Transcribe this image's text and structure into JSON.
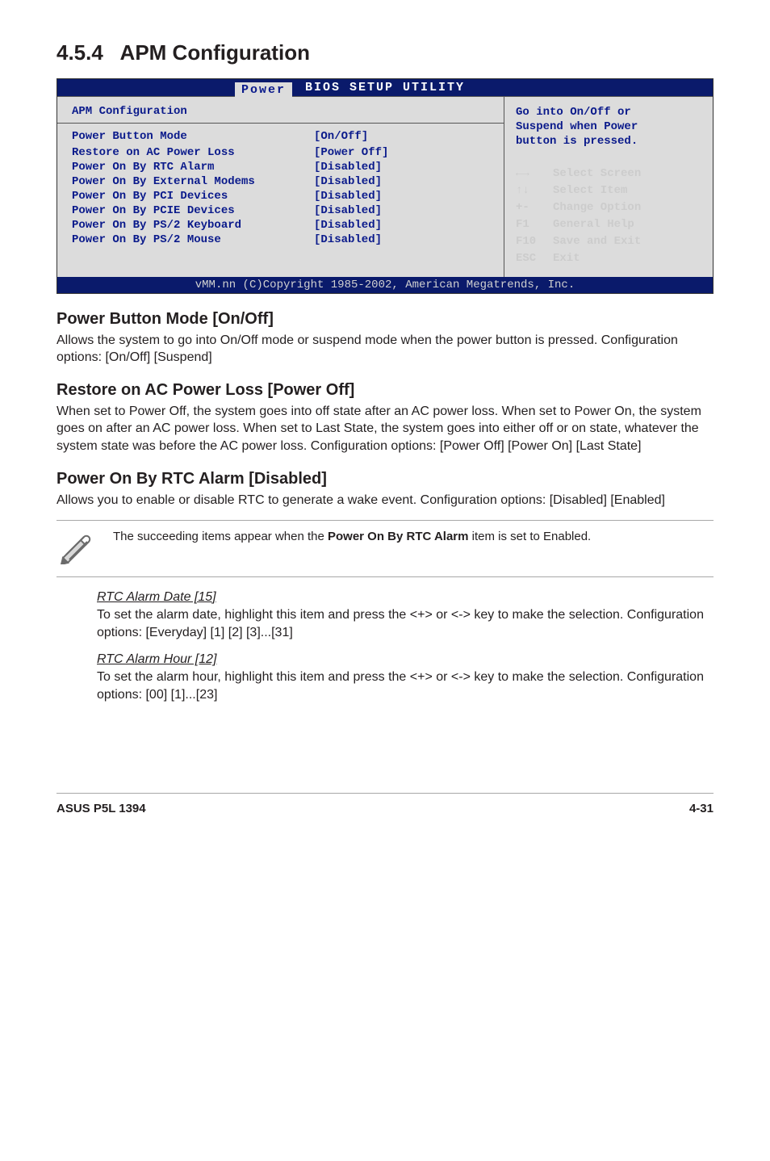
{
  "section": {
    "number": "4.5.4",
    "title": "APM Configuration"
  },
  "bios": {
    "header": "BIOS SETUP UTILITY",
    "tab": "Power",
    "left_title": "APM Configuration",
    "rows": [
      {
        "label": "Power Button Mode",
        "value": "[On/Off]"
      },
      {
        "label": "",
        "value": ""
      },
      {
        "label": "Restore on AC Power Loss",
        "value": "[Power Off]"
      },
      {
        "label": "Power On By RTC Alarm",
        "value": "[Disabled]"
      },
      {
        "label": "Power On By External Modems",
        "value": "[Disabled]"
      },
      {
        "label": "Power On By PCI Devices",
        "value": "[Disabled]"
      },
      {
        "label": "Power On By PCIE Devices",
        "value": "[Disabled]"
      },
      {
        "label": "Power On By PS/2 Keyboard",
        "value": "[Disabled]"
      },
      {
        "label": "Power On By PS/2 Mouse",
        "value": "[Disabled]"
      }
    ],
    "help": {
      "line1": "Go into On/Off or",
      "line2": "Suspend when Power",
      "line3": "button is pressed."
    },
    "nav": [
      {
        "key": "←→",
        "action": "Select Screen"
      },
      {
        "key": "↑↓",
        "action": "Select Item"
      },
      {
        "key": "+-",
        "action": "Change Option"
      },
      {
        "key": "F1",
        "action": "General Help"
      },
      {
        "key": "F10",
        "action": "Save and Exit"
      },
      {
        "key": "ESC",
        "action": "Exit"
      }
    ],
    "footer": "vMM.nn (C)Copyright 1985-2002, American Megatrends, Inc."
  },
  "subs": [
    {
      "title": "Power Button Mode [On/Off]",
      "text": "Allows the system to go into On/Off mode or suspend mode when the power button is pressed. Configuration options: [On/Off] [Suspend]"
    },
    {
      "title": "Restore on AC Power Loss [Power Off]",
      "text": "When set to Power Off, the system goes into off state after an AC power loss. When set to Power On, the system goes on after an AC power loss. When set to Last State, the system goes into either off or on state, whatever the system state was before the AC power loss. Configuration options: [Power Off] [Power On] [Last State]"
    },
    {
      "title": "Power On By RTC Alarm [Disabled]",
      "text": "Allows you to enable or disable RTC to generate a wake event. Configuration options: [Disabled] [Enabled]"
    }
  ],
  "note": {
    "text_before": "The succeeding items appear when the ",
    "bold": "Power On By RTC Alarm",
    "text_after": " item is set to Enabled."
  },
  "rtc_items": [
    {
      "title": "RTC Alarm Date [15]",
      "text": "To set the alarm date, highlight this item and press the <+> or <-> key to make the selection. Configuration options: [Everyday] [1] [2] [3]...[31]"
    },
    {
      "title": "RTC Alarm Hour [12]",
      "text": "To set the alarm hour, highlight this item and press the <+> or <-> key to make the selection. Configuration options: [00] [1]...[23]"
    }
  ],
  "footer": {
    "left": "ASUS P5L 1394",
    "right": "4-31"
  }
}
